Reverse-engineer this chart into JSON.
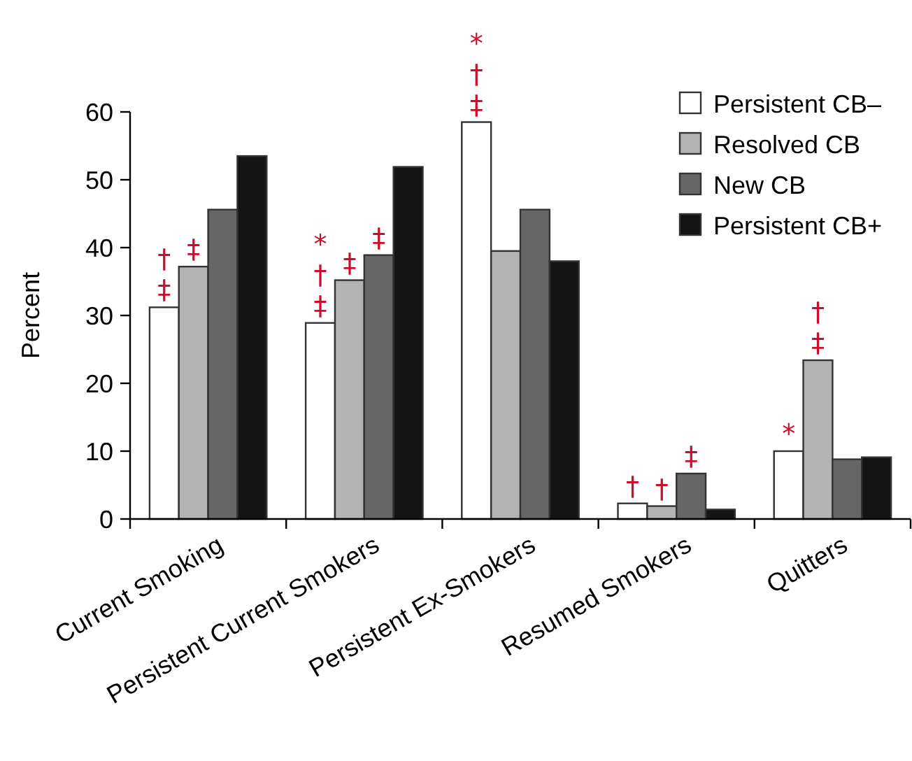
{
  "chart_data": {
    "type": "bar",
    "ylabel": "Percent",
    "categories": [
      "Current Smoking",
      "Persistent Current Smokers",
      "Persistent Ex-Smokers",
      "Resumed Smokers",
      "Quitters"
    ],
    "series": [
      {
        "name": "Persistent CB–",
        "color": "#ffffff",
        "values": [
          31.2,
          28.9,
          58.5,
          2.3,
          10.0
        ],
        "value_labels": [
          "†‡",
          "*†‡",
          "*†‡",
          "†",
          "*"
        ]
      },
      {
        "name": "Resolved CB",
        "color": "#b3b3b3",
        "values": [
          37.2,
          35.2,
          39.5,
          1.9,
          23.4
        ],
        "value_labels": [
          "‡",
          "‡",
          null,
          "†",
          "†‡"
        ]
      },
      {
        "name": "New CB",
        "color": "#666666",
        "values": [
          45.6,
          38.9,
          45.6,
          6.7,
          8.8
        ],
        "value_labels": [
          null,
          "‡",
          null,
          "‡",
          null
        ]
      },
      {
        "name": "Persistent CB+",
        "color": "#141414",
        "values": [
          53.5,
          51.9,
          38.0,
          1.4,
          9.1
        ]
      }
    ],
    "ylim": [
      0,
      60
    ],
    "yticks": [
      0,
      10,
      20,
      30,
      40,
      50,
      60
    ],
    "grid": false,
    "legend": "top right"
  }
}
